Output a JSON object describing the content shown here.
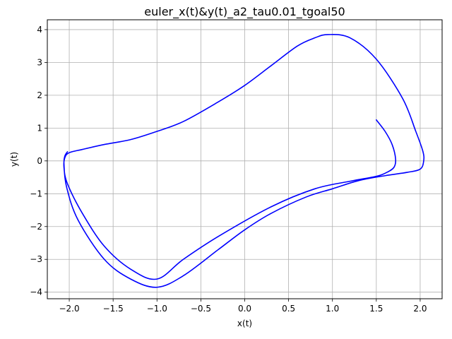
{
  "chart_data": {
    "type": "line",
    "title": "euler_x(t)&y(t)_a2_tau0.01_tgoal50",
    "xlabel": "x(t)",
    "ylabel": "y(t)",
    "xlim": [
      -2.25,
      2.25
    ],
    "ylim": [
      -4.2,
      4.3
    ],
    "xticks": [
      -2.0,
      -1.5,
      -1.0,
      -0.5,
      0.0,
      0.5,
      1.0,
      1.5,
      2.0
    ],
    "xtick_labels": [
      "−2.0",
      "−1.5",
      "−1.0",
      "−0.5",
      "0.0",
      "0.5",
      "1.0",
      "1.5",
      "2.0"
    ],
    "yticks": [
      -4,
      -3,
      -2,
      -1,
      0,
      1,
      2,
      3,
      4
    ],
    "ytick_labels": [
      "−4",
      "−3",
      "−2",
      "−1",
      "0",
      "1",
      "2",
      "3",
      "4"
    ],
    "grid": true,
    "series": [
      {
        "color": "#0000ff",
        "x": [
          1.5,
          1.6,
          1.68,
          1.72,
          1.7,
          1.62,
          1.5,
          1.2,
          0.8,
          0.3,
          -0.3,
          -0.7,
          -1.0,
          -1.3,
          -1.6,
          -1.85,
          -2.02,
          -2.06,
          -2.05,
          -2.0,
          -1.85,
          -1.6,
          -1.3,
          -1.0,
          -0.7,
          -0.3,
          0.0,
          0.3,
          0.6,
          0.8,
          0.95,
          1.2,
          1.5,
          1.8,
          1.95,
          2.03,
          2.04,
          2.0,
          1.85,
          1.6,
          1.3,
          1.0,
          0.7,
          0.3,
          0.0,
          -0.3,
          -0.7,
          -1.0,
          -1.3,
          -1.6,
          -1.9,
          -2.03,
          -2.06,
          -2.05,
          -2.02
        ],
        "y": [
          1.25,
          0.9,
          0.5,
          0.05,
          -0.2,
          -0.35,
          -0.47,
          -0.62,
          -0.85,
          -1.4,
          -2.3,
          -3.0,
          -3.6,
          -3.3,
          -2.6,
          -1.6,
          -0.7,
          -0.2,
          0.1,
          0.25,
          0.35,
          0.5,
          0.65,
          0.9,
          1.2,
          1.8,
          2.3,
          2.9,
          3.5,
          3.75,
          3.85,
          3.75,
          3.1,
          1.9,
          0.9,
          0.3,
          0.0,
          -0.25,
          -0.35,
          -0.45,
          -0.6,
          -0.85,
          -1.1,
          -1.6,
          -2.1,
          -2.7,
          -3.5,
          -3.85,
          -3.6,
          -3.0,
          -1.8,
          -0.8,
          -0.1,
          0.15,
          0.28
        ]
      }
    ]
  }
}
